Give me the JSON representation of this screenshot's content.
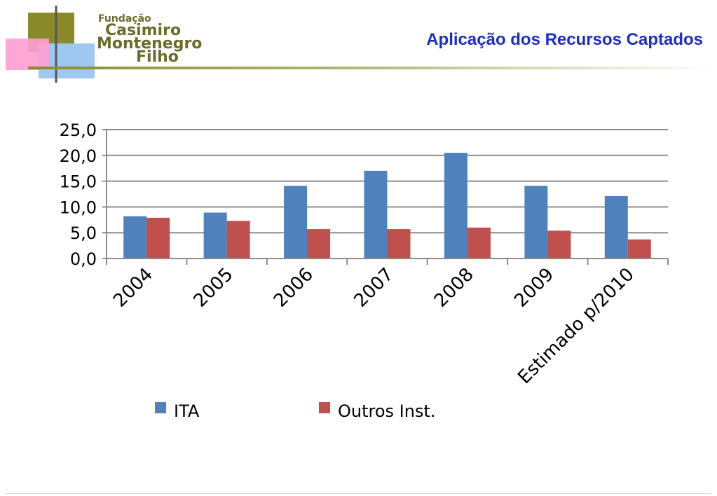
{
  "header": {
    "logo": {
      "line1": "Fundação",
      "line2": "Casimiro",
      "line3": "Montenegro",
      "line4": "Filho"
    },
    "title": "Aplicação dos Recursos Captados"
  },
  "colors": {
    "ita": "#4f81bd",
    "outros": "#c0504d",
    "title": "#1d2ec4",
    "logo_olive": "#8a8a2a",
    "logo_pink": "#ff88c8",
    "logo_blue": "#9ec8f0"
  },
  "chart_data": {
    "type": "bar",
    "title": "",
    "xlabel": "",
    "ylabel": "",
    "categories": [
      "2004",
      "2005",
      "2006",
      "2007",
      "2008",
      "2009",
      "Estimado p/2010"
    ],
    "series": [
      {
        "name": "ITA",
        "values": [
          8.2,
          8.9,
          14.1,
          17.0,
          20.5,
          14.1,
          12.1
        ]
      },
      {
        "name": "Outros Inst.",
        "values": [
          7.9,
          7.3,
          5.7,
          5.7,
          6.0,
          5.4,
          3.7
        ]
      }
    ],
    "ylim": [
      0,
      25
    ],
    "yticks": [
      "0,0",
      "5,0",
      "10,0",
      "15,0",
      "20,0",
      "25,0"
    ],
    "grid": true,
    "legend": "bottom"
  }
}
